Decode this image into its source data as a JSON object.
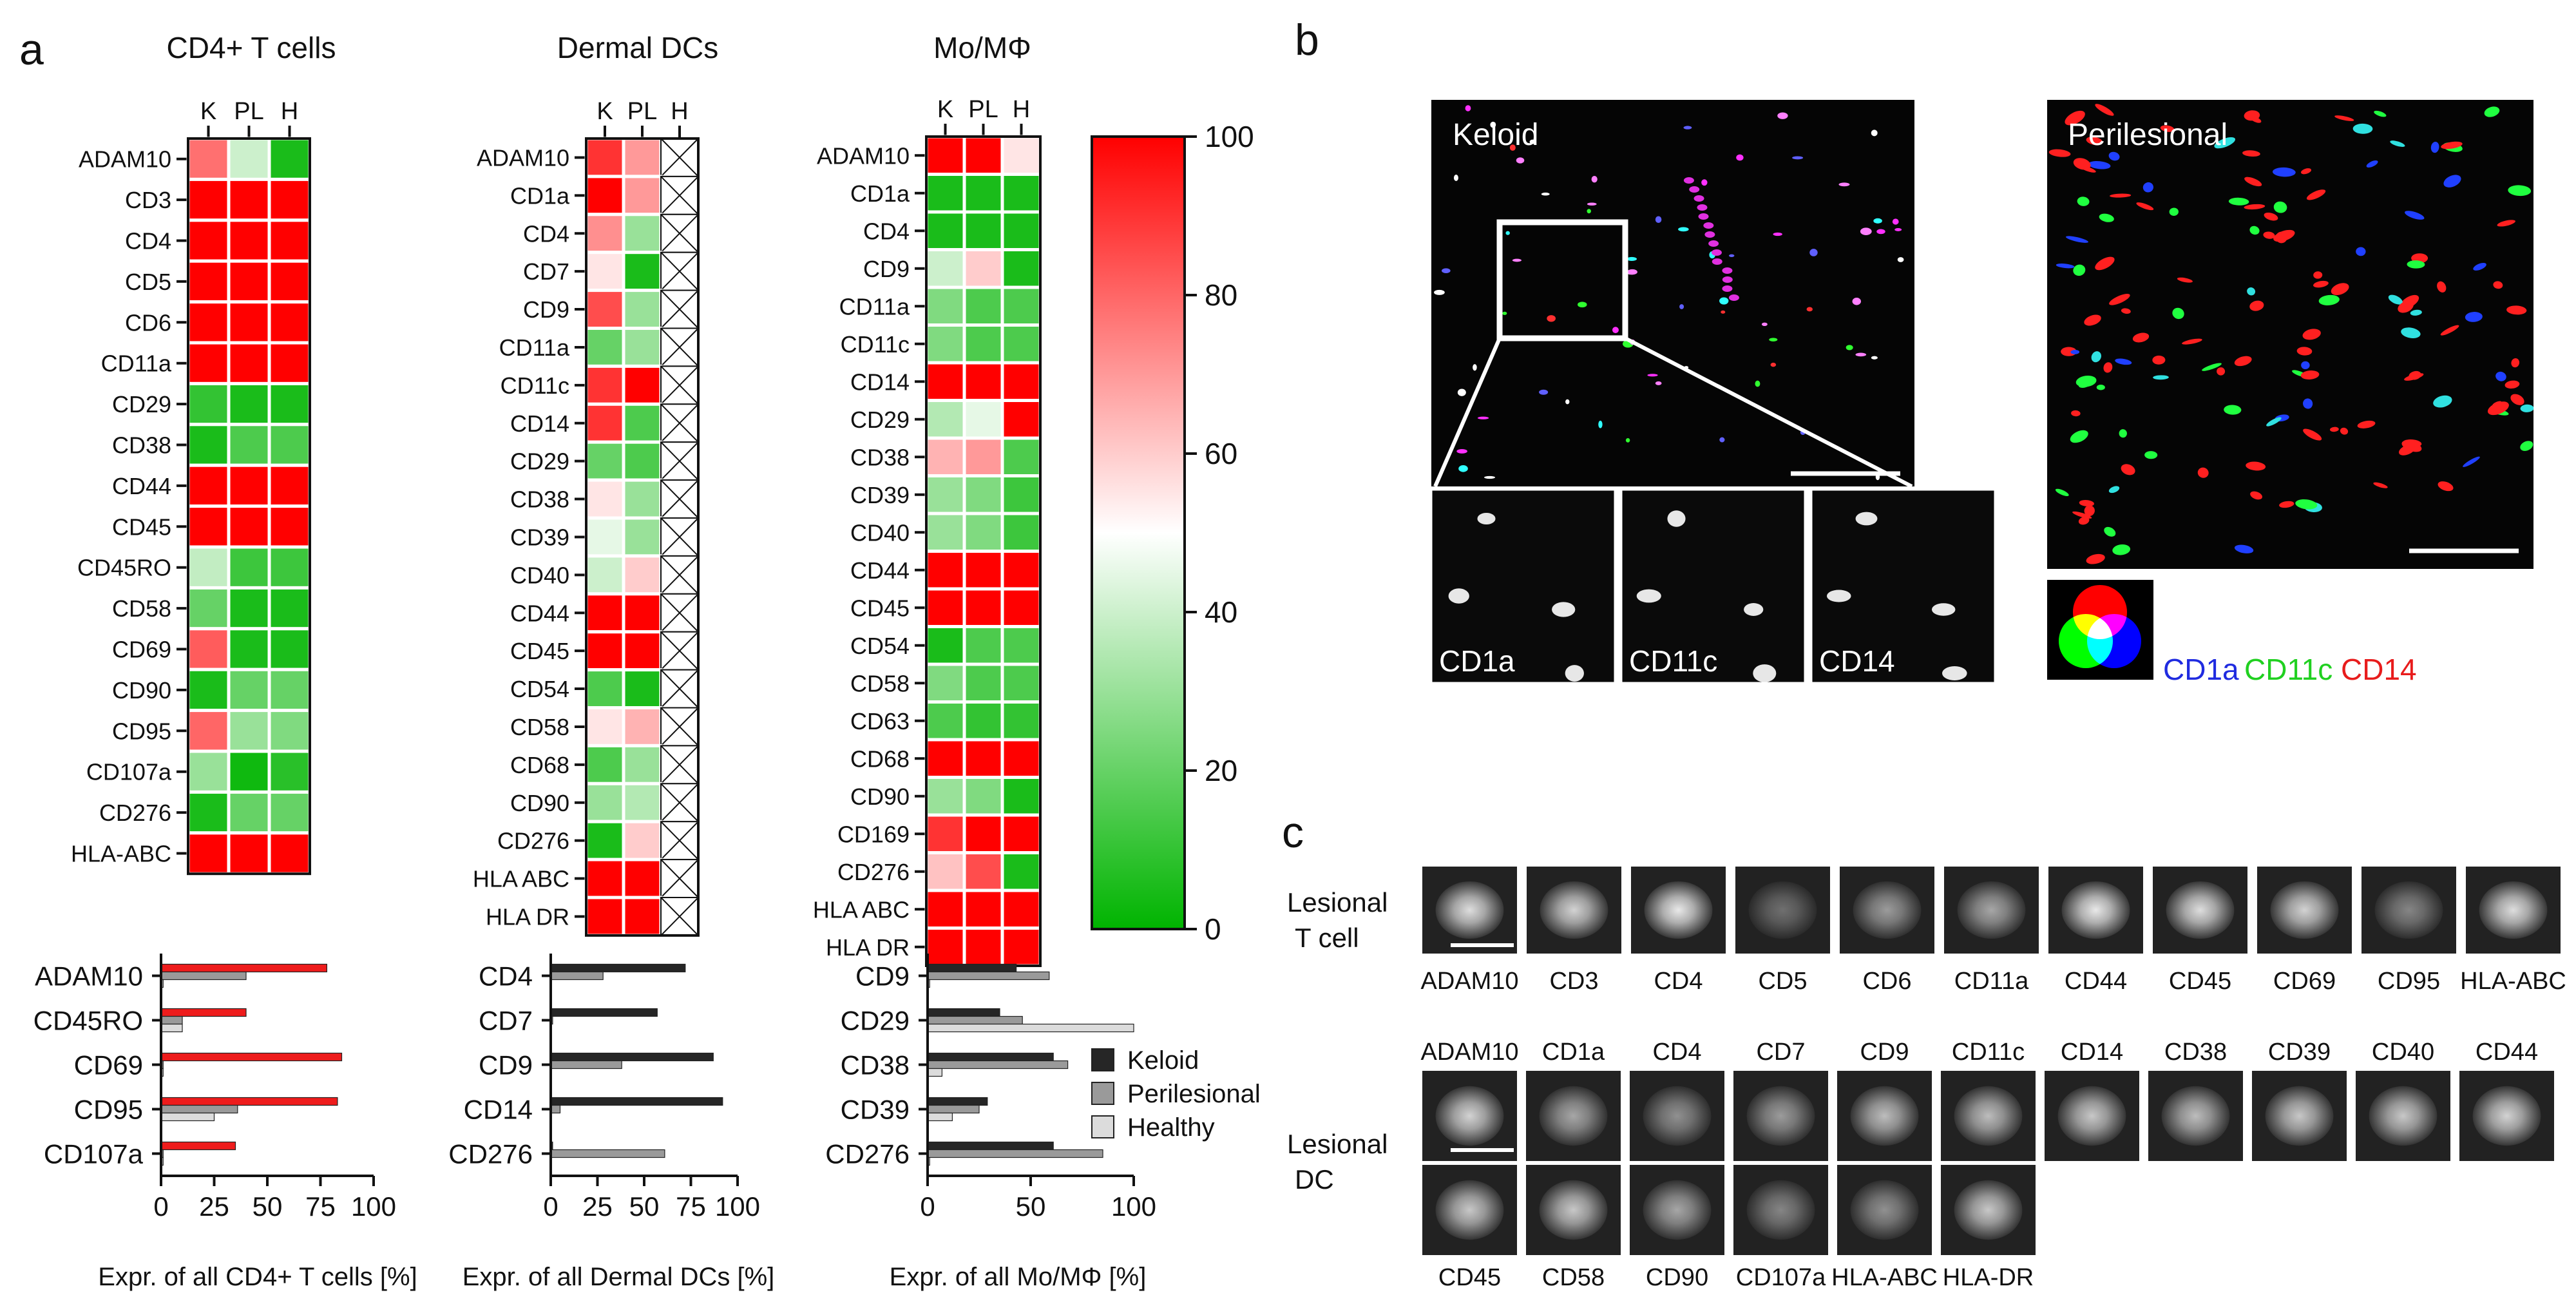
{
  "panel_labels": {
    "a": "a",
    "b": "b",
    "c": "c"
  },
  "colorscale": {
    "min": 0,
    "max": 100,
    "ticks": [
      "100",
      "80",
      "60",
      "40",
      "20",
      "0"
    ],
    "low_color": "#00b400",
    "mid_color": "#ffffff",
    "high_color": "#ff0000"
  },
  "heatmap_col_labels": [
    "K",
    "PL",
    "H"
  ],
  "chart_data": [
    {
      "type": "heatmap",
      "title": "CD4+ T cells",
      "columns": [
        "K",
        "PL",
        "H"
      ],
      "rows": [
        "ADAM10",
        "CD3",
        "CD4",
        "CD5",
        "CD6",
        "CD11a",
        "CD29",
        "CD38",
        "CD44",
        "CD45",
        "CD45RO",
        "CD58",
        "CD69",
        "CD90",
        "CD95",
        "CD107a",
        "CD276",
        "HLA-ABC"
      ],
      "values": [
        [
          78,
          40,
          5
        ],
        [
          100,
          100,
          100
        ],
        [
          100,
          100,
          100
        ],
        [
          100,
          100,
          100
        ],
        [
          100,
          100,
          100
        ],
        [
          100,
          100,
          100
        ],
        [
          10,
          5,
          5
        ],
        [
          5,
          15,
          15
        ],
        [
          100,
          100,
          100
        ],
        [
          100,
          100,
          100
        ],
        [
          38,
          12,
          12
        ],
        [
          20,
          5,
          5
        ],
        [
          82,
          5,
          5
        ],
        [
          5,
          20,
          20
        ],
        [
          80,
          30,
          25
        ],
        [
          30,
          3,
          8
        ],
        [
          5,
          20,
          20
        ],
        [
          100,
          100,
          100
        ]
      ]
    },
    {
      "type": "heatmap",
      "title": "Dermal DCs",
      "columns": [
        "K",
        "PL",
        "H"
      ],
      "rows": [
        "ADAM10",
        "CD1a",
        "CD4",
        "CD7",
        "CD9",
        "CD11a",
        "CD11c",
        "CD14",
        "CD29",
        "CD38",
        "CD39",
        "CD40",
        "CD44",
        "CD45",
        "CD54",
        "CD58",
        "CD68",
        "CD90",
        "CD276",
        "HLA ABC",
        "HLA DR"
      ],
      "values": [
        [
          90,
          70,
          null
        ],
        [
          100,
          70,
          null
        ],
        [
          72,
          30,
          null
        ],
        [
          55,
          5,
          null
        ],
        [
          85,
          30,
          null
        ],
        [
          20,
          30,
          null
        ],
        [
          90,
          100,
          null
        ],
        [
          90,
          15,
          null
        ],
        [
          20,
          15,
          null
        ],
        [
          55,
          30,
          null
        ],
        [
          45,
          30,
          null
        ],
        [
          40,
          60,
          null
        ],
        [
          100,
          100,
          null
        ],
        [
          100,
          100,
          null
        ],
        [
          15,
          5,
          null
        ],
        [
          55,
          65,
          null
        ],
        [
          15,
          30,
          null
        ],
        [
          30,
          35,
          null
        ],
        [
          5,
          60,
          null
        ],
        [
          100,
          100,
          null
        ],
        [
          100,
          100,
          null
        ]
      ]
    },
    {
      "type": "heatmap",
      "title": "Mo/MΦ",
      "columns": [
        "K",
        "PL",
        "H"
      ],
      "rows": [
        "ADAM10",
        "CD1a",
        "CD4",
        "CD9",
        "CD11a",
        "CD11c",
        "CD14",
        "CD29",
        "CD38",
        "CD39",
        "CD40",
        "CD44",
        "CD45",
        "CD54",
        "CD58",
        "CD63",
        "CD68",
        "CD90",
        "CD169",
        "CD276",
        "HLA ABC",
        "HLA DR"
      ],
      "values": [
        [
          100,
          100,
          55
        ],
        [
          5,
          5,
          5
        ],
        [
          5,
          5,
          5
        ],
        [
          40,
          60,
          5
        ],
        [
          25,
          15,
          15
        ],
        [
          25,
          15,
          15
        ],
        [
          100,
          100,
          100
        ],
        [
          35,
          45,
          100
        ],
        [
          65,
          70,
          15
        ],
        [
          30,
          25,
          12
        ],
        [
          30,
          25,
          12
        ],
        [
          100,
          100,
          100
        ],
        [
          100,
          100,
          100
        ],
        [
          5,
          15,
          15
        ],
        [
          25,
          15,
          15
        ],
        [
          15,
          10,
          10
        ],
        [
          100,
          100,
          100
        ],
        [
          30,
          25,
          5
        ],
        [
          90,
          100,
          100
        ],
        [
          62,
          85,
          5
        ],
        [
          100,
          100,
          100
        ],
        [
          100,
          100,
          100
        ]
      ]
    },
    {
      "type": "bar",
      "orientation": "horizontal",
      "xlabel": "Expr. of all CD4+ T cells [%]",
      "xlim": [
        0,
        100
      ],
      "xticks": [
        "0",
        "25",
        "50",
        "75",
        "100"
      ],
      "categories": [
        "ADAM10",
        "CD45RO",
        "CD69",
        "CD95",
        "CD107a"
      ],
      "series": [
        {
          "color": "#ee1c1c",
          "values": [
            78,
            40,
            85,
            83,
            35
          ]
        },
        {
          "color": "#9a9a9a",
          "values": [
            40,
            10,
            1,
            36,
            1
          ]
        },
        {
          "color": "#dcdcdc",
          "values": [
            1,
            10,
            1,
            25,
            1
          ]
        }
      ]
    },
    {
      "type": "bar",
      "orientation": "horizontal",
      "xlabel": "Expr. of all Dermal DCs [%]",
      "xlim": [
        0,
        100
      ],
      "xticks": [
        "0",
        "25",
        "50",
        "75",
        "100"
      ],
      "categories": [
        "CD4",
        "CD7",
        "CD9",
        "CD14",
        "CD276"
      ],
      "series": [
        {
          "color": "#262626",
          "values": [
            72,
            57,
            87,
            92,
            1
          ]
        },
        {
          "color": "#9a9a9a",
          "values": [
            28,
            1,
            38,
            5,
            61
          ]
        },
        {
          "color": "#dcdcdc",
          "values": [
            0,
            0,
            0,
            0,
            0
          ]
        }
      ]
    },
    {
      "type": "bar",
      "orientation": "horizontal",
      "xlabel": "Expr. of all Mo/MΦ [%]",
      "xlim": [
        0,
        100
      ],
      "xticks": [
        "0",
        "50",
        "100"
      ],
      "categories": [
        "CD9",
        "CD29",
        "CD38",
        "CD39",
        "CD276"
      ],
      "series": [
        {
          "name": "Keloid",
          "color": "#262626",
          "values": [
            43,
            35,
            61,
            29,
            61
          ]
        },
        {
          "name": "Perilesional",
          "color": "#9a9a9a",
          "values": [
            59,
            46,
            68,
            25,
            85
          ]
        },
        {
          "name": "Healthy",
          "color": "#dcdcdc",
          "values": [
            1,
            100,
            7,
            12,
            1
          ]
        }
      ]
    }
  ],
  "panel_b": {
    "keloid_label": "Keloid",
    "perilesional_label": "Perilesional",
    "inset_labels": [
      "CD1a",
      "CD11c",
      "CD14"
    ],
    "legend_labels": [
      {
        "text": "CD1a",
        "color": "#1f2be0"
      },
      {
        "text": "CD11c",
        "color": "#20d020"
      },
      {
        "text": "CD14",
        "color": "#e81c1c"
      }
    ]
  },
  "panel_c": {
    "tcell_row_label": [
      "Lesional",
      "T cell"
    ],
    "tcell_labels": [
      "ADAM10",
      "CD3",
      "CD4",
      "CD5",
      "CD6",
      "CD11a",
      "CD44",
      "CD45",
      "CD69",
      "CD95",
      "HLA-ABC"
    ],
    "tcell_brightness": [
      0.85,
      0.8,
      0.9,
      0.35,
      0.55,
      0.6,
      0.9,
      0.85,
      0.8,
      0.45,
      0.85
    ],
    "dc_row_label": [
      "Lesional",
      "DC"
    ],
    "dc_top_labels": [
      "ADAM10",
      "CD1a",
      "CD4",
      "CD7",
      "CD9",
      "CD11c",
      "CD14",
      "CD38",
      "CD39",
      "CD40",
      "CD44"
    ],
    "dc_bottom_labels": [
      "CD45",
      "CD58",
      "CD90",
      "CD107a",
      "HLA-ABC",
      "HLA-DR"
    ],
    "dc_top_brightness": [
      0.8,
      0.6,
      0.5,
      0.55,
      0.7,
      0.7,
      0.75,
      0.7,
      0.75,
      0.75,
      0.8
    ],
    "dc_bottom_brightness": [
      0.75,
      0.75,
      0.6,
      0.45,
      0.5,
      0.75
    ]
  }
}
